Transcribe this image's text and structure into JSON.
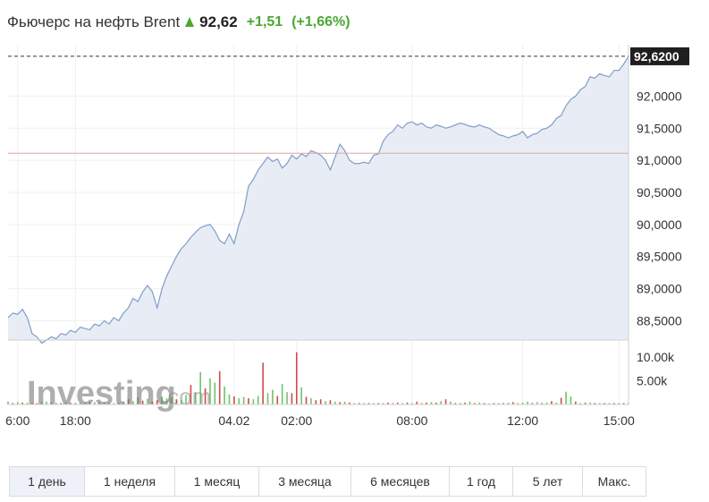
{
  "header": {
    "instrument": "Фьючерс на нефть Brent",
    "price": "92,62",
    "change": "+1,51",
    "change_pct": "(+1,66%)",
    "arrow_icon": "arrow-up-icon",
    "up_color": "#4aa832"
  },
  "chart_data": {
    "type": "area",
    "title": "",
    "xlabel": "",
    "ylabel": "",
    "line_color": "#7f9dc8",
    "fill_color": "#e8ecf5",
    "ylim": [
      88.2,
      92.8
    ],
    "y_ticks": [
      "92,0000",
      "91,5000",
      "91,0000",
      "90,5000",
      "90,0000",
      "89,5000",
      "89,0000",
      "88,5000"
    ],
    "y_tick_values": [
      92.0,
      91.5,
      91.0,
      90.5,
      90.0,
      89.5,
      89.0,
      88.5
    ],
    "last_price_label": "92,6200",
    "last_price": 92.62,
    "reference_line": 91.11,
    "x_ticks": [
      "6:00",
      "18:00",
      "04.02",
      "02:00",
      "08:00",
      "12:00",
      "15:00"
    ],
    "x_tick_index": [
      2,
      14,
      47,
      60,
      84,
      107,
      127
    ],
    "n_points": 130,
    "series": [
      {
        "values": [
          88.55,
          88.62,
          88.6,
          88.68,
          88.55,
          88.3,
          88.25,
          88.15,
          88.2,
          88.25,
          88.22,
          88.3,
          88.28,
          88.35,
          88.32,
          88.4,
          88.38,
          88.36,
          88.45,
          88.42,
          88.5,
          88.45,
          88.55,
          88.5,
          88.62,
          88.7,
          88.85,
          88.8,
          88.95,
          89.05,
          88.95,
          88.7,
          89.0,
          89.2,
          89.35,
          89.5,
          89.62,
          89.7,
          89.8,
          89.88,
          89.95,
          89.98,
          90.0,
          89.9,
          89.75,
          89.7,
          89.85,
          89.7,
          90.0,
          90.2,
          90.6,
          90.7,
          90.85,
          90.95,
          91.05,
          90.98,
          91.02,
          90.88,
          90.95,
          91.08,
          91.02,
          91.1,
          91.06,
          91.15,
          91.12,
          91.08,
          91.0,
          90.85,
          91.05,
          91.25,
          91.15,
          91.0,
          90.95,
          90.95,
          90.97,
          90.95,
          91.08,
          91.1,
          91.3,
          91.4,
          91.45,
          91.55,
          91.5,
          91.58,
          91.6,
          91.55,
          91.58,
          91.52,
          91.5,
          91.55,
          91.53,
          91.5,
          91.52,
          91.55,
          91.58,
          91.56,
          91.53,
          91.52,
          91.55,
          91.52,
          91.5,
          91.45,
          91.4,
          91.38,
          91.35,
          91.38,
          91.4,
          91.45,
          91.35,
          91.4,
          91.42,
          91.48,
          91.5,
          91.55,
          91.65,
          91.7,
          91.85,
          91.95,
          92.0,
          92.1,
          92.15,
          92.3,
          92.28,
          92.35,
          92.32,
          92.3,
          92.4,
          92.4,
          92.5,
          92.62
        ]
      }
    ],
    "volume": {
      "ticks": [
        "10.00k",
        "5.00k"
      ],
      "tick_values": [
        10000,
        5000
      ],
      "ylim": [
        0,
        13000
      ],
      "up_color": "#6ec46a",
      "down_color": "#d24a4a",
      "values": [
        600,
        300,
        500,
        400,
        350,
        300,
        280,
        500,
        600,
        400,
        350,
        300,
        420,
        380,
        300,
        360,
        400,
        450,
        500,
        380,
        420,
        300,
        260,
        320,
        500,
        1100,
        700,
        1500,
        800,
        1200,
        600,
        900,
        1700,
        1300,
        1500,
        1100,
        900,
        2000,
        4100,
        2600,
        6800,
        3400,
        5500,
        4600,
        7000,
        3800,
        2100,
        1700,
        1300,
        1600,
        1300,
        1100,
        1800,
        8800,
        2400,
        3100,
        1800,
        4300,
        2600,
        2400,
        11000,
        3600,
        1600,
        1300,
        900,
        1100,
        700,
        900,
        600,
        500,
        600,
        400,
        300,
        300,
        300,
        300,
        300,
        300,
        300,
        400,
        300,
        400,
        300,
        400,
        300,
        600,
        300,
        400,
        500,
        400,
        700,
        1100,
        600,
        300,
        300,
        400,
        600,
        300,
        400,
        300,
        200,
        300,
        300,
        300,
        400,
        500,
        300,
        300,
        600,
        300,
        500,
        300,
        400,
        700,
        400,
        1400,
        2700,
        1700,
        600,
        300,
        400,
        400,
        300,
        300,
        300,
        300,
        300,
        300,
        300,
        300
      ],
      "down": [
        false,
        true,
        false,
        true,
        false,
        true,
        true,
        false,
        false,
        true,
        false,
        true,
        false,
        true,
        true,
        false,
        false,
        true,
        false,
        true,
        false,
        true,
        false,
        true,
        false,
        true,
        false,
        false,
        true,
        false,
        true,
        true,
        false,
        false,
        false,
        true,
        false,
        false,
        true,
        false,
        false,
        true,
        false,
        false,
        true,
        false,
        false,
        true,
        false,
        false,
        true,
        false,
        false,
        true,
        false,
        false,
        true,
        false,
        false,
        true,
        true,
        false,
        true,
        false,
        true,
        true,
        false,
        true,
        false,
        true,
        false,
        true,
        false,
        true,
        false,
        true,
        false,
        true,
        false,
        true,
        false,
        true,
        false,
        true,
        false,
        true,
        false,
        true,
        false,
        true,
        false,
        true,
        false,
        true,
        false,
        true,
        false,
        true,
        false,
        true,
        false,
        true,
        false,
        true,
        false,
        true,
        false,
        true,
        false,
        true,
        false,
        true,
        false,
        true,
        false,
        true,
        false,
        false,
        true,
        false,
        true,
        false,
        true,
        false,
        true,
        false,
        true,
        false,
        true,
        false
      ]
    }
  },
  "watermark": {
    "brand": "Investing",
    "suffix": ".com"
  },
  "periods": [
    {
      "label": "1 день",
      "active": true
    },
    {
      "label": "1 неделя",
      "active": false
    },
    {
      "label": "1 месяц",
      "active": false
    },
    {
      "label": "3 месяца",
      "active": false
    },
    {
      "label": "6 месяцев",
      "active": false
    },
    {
      "label": "1 год",
      "active": false
    },
    {
      "label": "5 лет",
      "active": false
    },
    {
      "label": "Макс.",
      "active": false
    }
  ]
}
